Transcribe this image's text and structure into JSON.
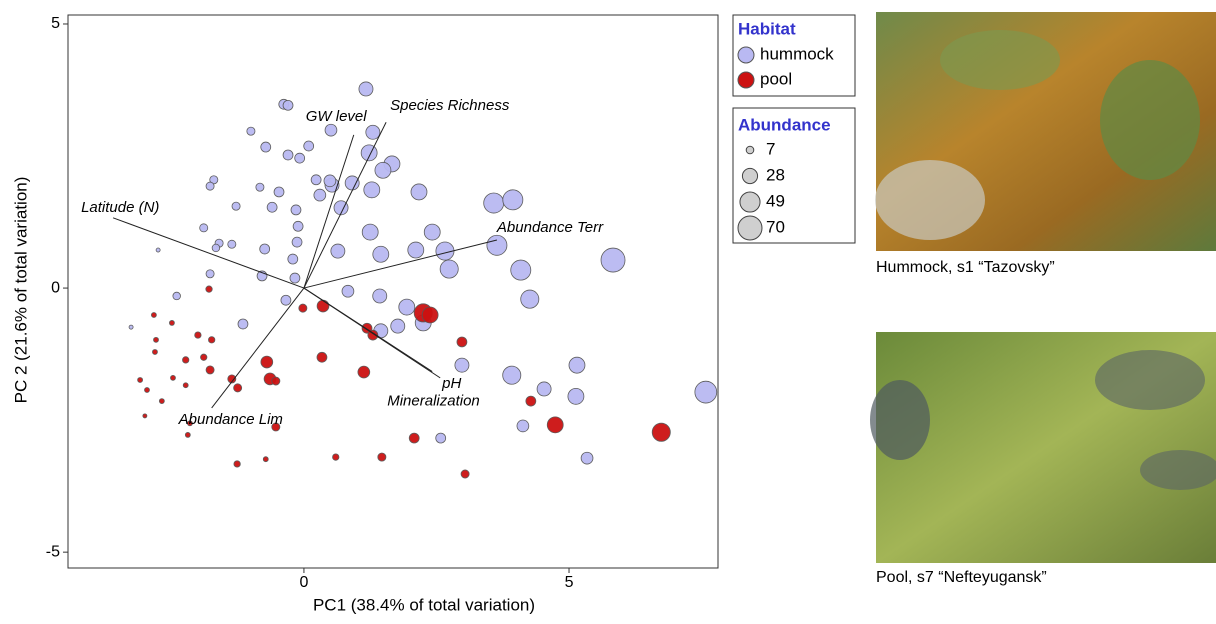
{
  "chart_data": {
    "type": "bubble",
    "x_label": "PC1 (38.4% of total variation)",
    "y_label": "PC 2 (21.6% of total variation)",
    "xlim": [
      -4.45,
      7.81
    ],
    "ylim": [
      -5.3,
      5.17
    ],
    "xticks": [
      0,
      5
    ],
    "yticks": [
      -5,
      0,
      5
    ],
    "legend_title": "Habitat",
    "size_legend_title": "Abundance",
    "size_legend": [
      7,
      28,
      49,
      70
    ],
    "series": [
      {
        "name": "hummock",
        "color": "#b9b9f2",
        "x": [
          1.17,
          -0.38,
          -0.3,
          0.51,
          1.3,
          -1.0,
          -0.72,
          0.09,
          -0.3,
          -0.08,
          1.23,
          1.66,
          1.49,
          0.91,
          1.28,
          0.53,
          0.49,
          0.23,
          -0.83,
          -1.7,
          -1.77,
          -0.47,
          0.3,
          2.17,
          3.58,
          3.94,
          -1.28,
          -0.6,
          -0.15,
          0.7,
          -1.89,
          -1.6,
          -1.36,
          -0.11,
          1.25,
          2.42,
          0.64,
          -0.74,
          -0.13,
          1.45,
          2.11,
          2.66,
          3.64,
          5.83,
          2.74,
          4.09,
          -0.21,
          -0.79,
          -1.77,
          -0.17,
          0.83,
          1.43,
          1.94,
          4.26,
          -0.34,
          1.45,
          1.77,
          2.25,
          2.98,
          5.15,
          3.92,
          4.53,
          5.13,
          7.58,
          4.13,
          2.58,
          5.34,
          -1.15,
          -2.4,
          -2.75,
          -3.26,
          -1.66
        ],
        "y": [
          3.77,
          3.48,
          3.46,
          2.99,
          2.95,
          2.97,
          2.67,
          2.69,
          2.52,
          2.46,
          2.56,
          2.35,
          2.23,
          1.99,
          1.86,
          1.95,
          2.03,
          2.05,
          1.91,
          2.05,
          1.93,
          1.82,
          1.76,
          1.82,
          1.61,
          1.67,
          1.55,
          1.53,
          1.48,
          1.52,
          1.14,
          0.85,
          0.83,
          1.17,
          1.06,
          1.06,
          0.7,
          0.74,
          0.87,
          0.64,
          0.72,
          0.7,
          0.81,
          0.53,
          0.36,
          0.34,
          0.55,
          0.23,
          0.27,
          0.19,
          -0.06,
          -0.15,
          -0.36,
          -0.21,
          -0.23,
          -0.81,
          -0.72,
          -0.66,
          -1.46,
          -1.46,
          -1.65,
          -1.91,
          -2.05,
          -1.97,
          -2.61,
          -2.84,
          -3.22,
          -0.68,
          -0.15,
          0.72,
          -0.74,
          0.76
        ],
        "sizes": [
          24,
          12,
          12,
          17,
          24,
          8,
          12,
          12,
          12,
          12,
          31,
          31,
          31,
          24,
          31,
          24,
          17,
          12,
          8,
          8,
          8,
          12,
          17,
          31,
          49,
          49,
          8,
          12,
          12,
          24,
          8,
          8,
          8,
          12,
          31,
          31,
          24,
          12,
          12,
          31,
          31,
          40,
          49,
          70,
          40,
          49,
          12,
          12,
          8,
          12,
          17,
          24,
          31,
          40,
          12,
          24,
          24,
          31,
          24,
          31,
          40,
          24,
          31,
          58,
          17,
          12,
          17,
          12,
          7,
          2,
          2,
          7
        ]
      },
      {
        "name": "pool",
        "color": "#cc1111",
        "x": [
          2.25,
          2.38,
          0.36,
          -0.02,
          1.19,
          1.3,
          2.98,
          0.34,
          1.13,
          -0.7,
          -0.64,
          -1.36,
          -0.53,
          -1.25,
          4.28,
          4.74,
          6.74,
          2.08,
          -0.53,
          1.47,
          3.04,
          0.6,
          -0.72,
          -1.26,
          -1.79,
          -1.77,
          -2.0,
          -1.74,
          -1.89,
          -2.23,
          -2.49,
          -2.79,
          -2.81,
          -3.09,
          -2.47,
          -2.23,
          -2.96,
          -2.15,
          -2.19,
          -3.0,
          -2.68,
          -2.83
        ],
        "y": [
          -0.47,
          -0.51,
          -0.34,
          -0.38,
          -0.76,
          -0.89,
          -1.02,
          -1.31,
          -1.59,
          -1.4,
          -1.72,
          -1.72,
          -1.76,
          -1.89,
          -2.14,
          -2.59,
          -2.73,
          -2.84,
          -2.63,
          -3.2,
          -3.52,
          -3.2,
          -3.24,
          -3.33,
          -0.02,
          -1.55,
          -0.89,
          -0.98,
          -1.31,
          -1.36,
          -0.66,
          -0.98,
          -1.21,
          -1.74,
          -1.7,
          -1.84,
          -1.93,
          -2.56,
          -2.78,
          -2.42,
          -2.14,
          -0.51
        ],
        "sizes": [
          40,
          31,
          17,
          8,
          12,
          12,
          12,
          12,
          17,
          17,
          17,
          8,
          8,
          8,
          12,
          31,
          40,
          12,
          8,
          8,
          8,
          5,
          3,
          5,
          5,
          8,
          5,
          5,
          5,
          5,
          3,
          3,
          3,
          3,
          3,
          3,
          3,
          3,
          3,
          2,
          3,
          3
        ]
      }
    ],
    "vectors": [
      {
        "label": "GW level",
        "x": 0.94,
        "y": 2.9
      },
      {
        "label": "Species Richness",
        "x": 1.55,
        "y": 3.14
      },
      {
        "label": "Latitude (N)",
        "x": -3.6,
        "y": 1.33
      },
      {
        "label": "Abundance Terr",
        "x": 3.64,
        "y": 0.91
      },
      {
        "label": "pH",
        "x": 2.57,
        "y": -1.7
      },
      {
        "label": "Mineralization",
        "x": 2.42,
        "y": -1.58
      },
      {
        "label": "Abundance Lim",
        "x": -1.74,
        "y": -2.27
      }
    ]
  },
  "photos": [
    {
      "caption": "Hummock, s1 “Tazovsky”"
    },
    {
      "caption": "Pool, s7 “Nefteyugansk”"
    }
  ]
}
